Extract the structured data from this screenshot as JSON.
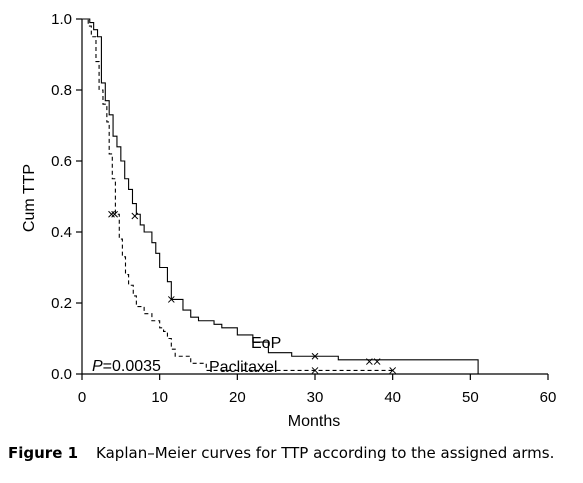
{
  "chart_data": {
    "type": "line",
    "subtype": "kaplan-meier step",
    "xlabel": "Months",
    "ylabel": "Cum TTP",
    "xlim": [
      0,
      60
    ],
    "ylim": [
      0,
      1.0
    ],
    "x_ticks": [
      "0",
      "10",
      "20",
      "30",
      "40",
      "50",
      "60"
    ],
    "y_ticks": [
      "0.0",
      "0.2",
      "0.4",
      "0.6",
      "0.8",
      "1.0"
    ],
    "grid": false,
    "legend": "none (direct labels)",
    "series": [
      {
        "name": "EoP",
        "line_style": "solid",
        "steps": [
          [
            0,
            1.0
          ],
          [
            1,
            0.99
          ],
          [
            1.5,
            0.97
          ],
          [
            2,
            0.95
          ],
          [
            2.5,
            0.82
          ],
          [
            3,
            0.77
          ],
          [
            3.5,
            0.73
          ],
          [
            4,
            0.67
          ],
          [
            4.5,
            0.64
          ],
          [
            5,
            0.6
          ],
          [
            5.5,
            0.55
          ],
          [
            6,
            0.52
          ],
          [
            6.5,
            0.48
          ],
          [
            7,
            0.45
          ],
          [
            7.5,
            0.42
          ],
          [
            8,
            0.4
          ],
          [
            9,
            0.37
          ],
          [
            9.5,
            0.34
          ],
          [
            10,
            0.3
          ],
          [
            11,
            0.26
          ],
          [
            11.5,
            0.21
          ],
          [
            12,
            0.21
          ],
          [
            13,
            0.18
          ],
          [
            14,
            0.16
          ],
          [
            15,
            0.15
          ],
          [
            17,
            0.14
          ],
          [
            18,
            0.13
          ],
          [
            20,
            0.11
          ],
          [
            22,
            0.09
          ],
          [
            24,
            0.06
          ],
          [
            27,
            0.05
          ],
          [
            30,
            0.05
          ],
          [
            33,
            0.04
          ],
          [
            37,
            0.04
          ],
          [
            51,
            0.0
          ]
        ],
        "censored": [
          [
            3.8,
            0.45
          ],
          [
            6.8,
            0.445
          ],
          [
            11.5,
            0.21
          ],
          [
            30,
            0.05
          ],
          [
            37,
            0.035
          ],
          [
            38,
            0.035
          ]
        ]
      },
      {
        "name": "Paclitaxel",
        "line_style": "dashed",
        "steps": [
          [
            0,
            1.0
          ],
          [
            0.8,
            0.98
          ],
          [
            1.2,
            0.95
          ],
          [
            1.8,
            0.88
          ],
          [
            2.2,
            0.8
          ],
          [
            2.7,
            0.76
          ],
          [
            3.2,
            0.71
          ],
          [
            3.5,
            0.62
          ],
          [
            3.9,
            0.55
          ],
          [
            4.3,
            0.45
          ],
          [
            4.8,
            0.38
          ],
          [
            5.2,
            0.33
          ],
          [
            5.6,
            0.28
          ],
          [
            6,
            0.25
          ],
          [
            6.6,
            0.22
          ],
          [
            7,
            0.19
          ],
          [
            8,
            0.17
          ],
          [
            9,
            0.15
          ],
          [
            10,
            0.13
          ],
          [
            10.5,
            0.12
          ],
          [
            11,
            0.1
          ],
          [
            11.5,
            0.07
          ],
          [
            12,
            0.05
          ],
          [
            14,
            0.03
          ],
          [
            16,
            0.01
          ],
          [
            30,
            0.01
          ],
          [
            40,
            0.01
          ]
        ],
        "censored": [
          [
            4.2,
            0.45
          ],
          [
            30,
            0.01
          ],
          [
            40,
            0.01
          ]
        ]
      }
    ],
    "annotations": {
      "p_value_label": "P",
      "p_value_text": "=0.0035",
      "eop_label": "EoP",
      "paclitaxel_label": "Paclitaxel"
    }
  },
  "caption": {
    "label": "Figure 1",
    "text": "Kaplan–Meier curves for TTP according to the assigned arms."
  }
}
